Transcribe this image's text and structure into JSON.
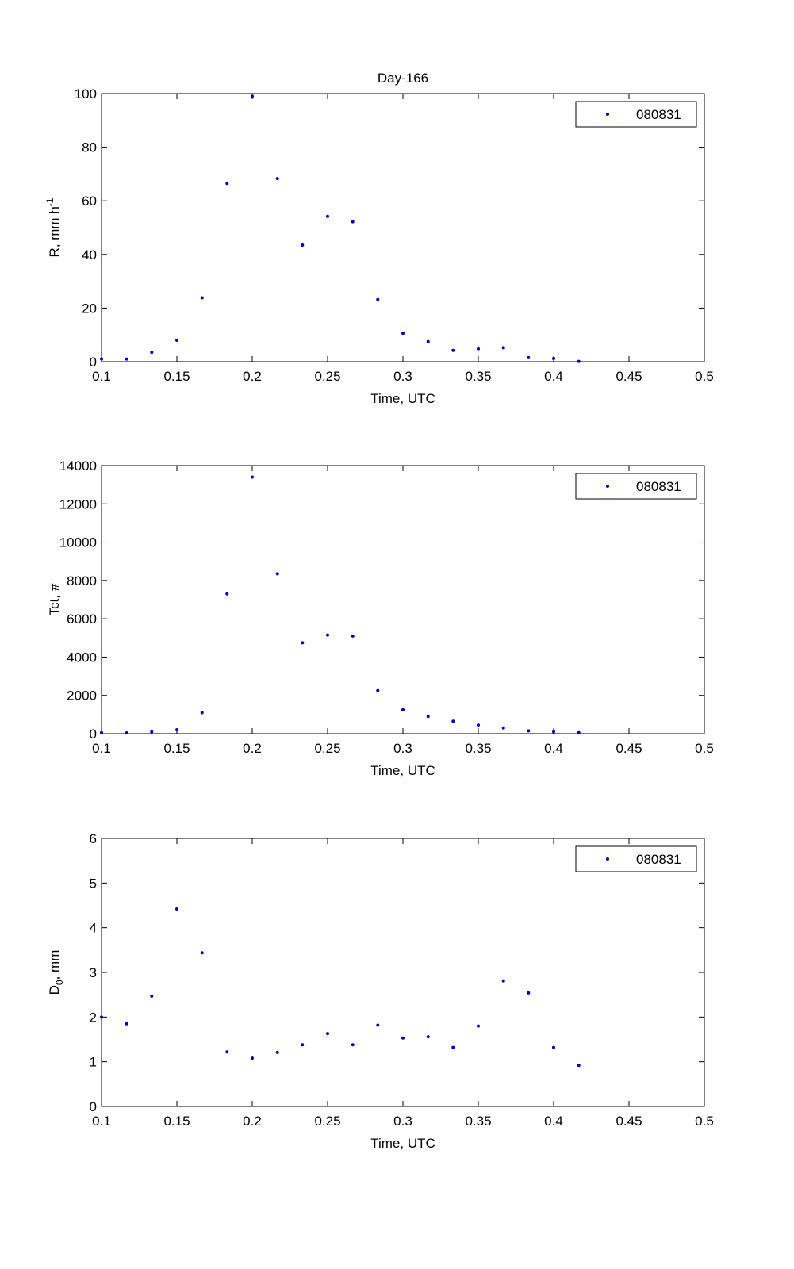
{
  "figure": {
    "title": "Day-166"
  },
  "colors": {
    "marker": "#0000cc",
    "axes": "#000000",
    "background": "#ffffff"
  },
  "chart_data": [
    {
      "type": "scatter",
      "title": "Day-166",
      "xlabel": "Time, UTC",
      "ylabel": {
        "base": "R, mm h",
        "sup": "-1"
      },
      "xlim": [
        0.1,
        0.5
      ],
      "ylim": [
        0,
        100
      ],
      "xticks": [
        "0.1",
        "0.15",
        "0.2",
        "0.25",
        "0.3",
        "0.35",
        "0.4",
        "0.45",
        "0.5"
      ],
      "yticks": [
        "0",
        "20",
        "40",
        "60",
        "80",
        "100"
      ],
      "legend": "top-right",
      "grid": false,
      "series": [
        {
          "name": "080831",
          "x": [
            0.1,
            0.1167,
            0.1333,
            0.15,
            0.1667,
            0.1833,
            0.2,
            0.2167,
            0.2333,
            0.25,
            0.2667,
            0.2833,
            0.3,
            0.3167,
            0.3333,
            0.35,
            0.3667,
            0.3833,
            0.4,
            0.4167
          ],
          "y": [
            1,
            1,
            3.5,
            8,
            23.8,
            66.5,
            99,
            68.3,
            43.5,
            54.2,
            52.2,
            23.2,
            10.6,
            7.5,
            4.2,
            4.8,
            5.2,
            1.5,
            1.2,
            0.1
          ]
        }
      ]
    },
    {
      "type": "scatter",
      "title": "",
      "xlabel": "Time, UTC",
      "ylabel": {
        "base": "Tct, #",
        "sup": ""
      },
      "xlim": [
        0.1,
        0.5
      ],
      "ylim": [
        0,
        14000
      ],
      "xticks": [
        "0.1",
        "0.15",
        "0.2",
        "0.25",
        "0.3",
        "0.35",
        "0.4",
        "0.45",
        "0.5"
      ],
      "yticks": [
        "0",
        "2000",
        "4000",
        "6000",
        "8000",
        "10000",
        "12000",
        "14000"
      ],
      "legend": "top-right",
      "grid": false,
      "series": [
        {
          "name": "080831",
          "x": [
            0.1,
            0.1167,
            0.1333,
            0.15,
            0.1667,
            0.1833,
            0.2,
            0.2167,
            0.2333,
            0.25,
            0.2667,
            0.2833,
            0.3,
            0.3167,
            0.3333,
            0.35,
            0.3667,
            0.3833,
            0.4,
            0.4167
          ],
          "y": [
            50,
            40,
            100,
            200,
            1100,
            7300,
            13400,
            8350,
            4750,
            5150,
            5100,
            2250,
            1250,
            900,
            650,
            450,
            300,
            150,
            100,
            50
          ]
        }
      ]
    },
    {
      "type": "scatter",
      "title": "",
      "xlabel": "Time, UTC",
      "ylabel": {
        "base": "D",
        "sub": "0",
        "rest": ", mm"
      },
      "xlim": [
        0.1,
        0.5
      ],
      "ylim": [
        0,
        6
      ],
      "xticks": [
        "0.1",
        "0.15",
        "0.2",
        "0.25",
        "0.3",
        "0.35",
        "0.4",
        "0.45",
        "0.5"
      ],
      "yticks": [
        "0",
        "1",
        "2",
        "3",
        "4",
        "5",
        "6"
      ],
      "legend": "top-right",
      "grid": false,
      "series": [
        {
          "name": "080831",
          "x": [
            0.1,
            0.1167,
            0.1333,
            0.15,
            0.1667,
            0.1833,
            0.2,
            0.2167,
            0.2333,
            0.25,
            0.2667,
            0.2833,
            0.3,
            0.3167,
            0.3333,
            0.35,
            0.3667,
            0.3833,
            0.4,
            0.4167
          ],
          "y": [
            2.0,
            1.85,
            2.47,
            4.42,
            3.44,
            1.22,
            1.08,
            1.21,
            1.38,
            1.63,
            1.38,
            1.82,
            1.53,
            1.56,
            1.32,
            1.8,
            2.81,
            2.54,
            1.32,
            0.92
          ]
        }
      ]
    }
  ]
}
